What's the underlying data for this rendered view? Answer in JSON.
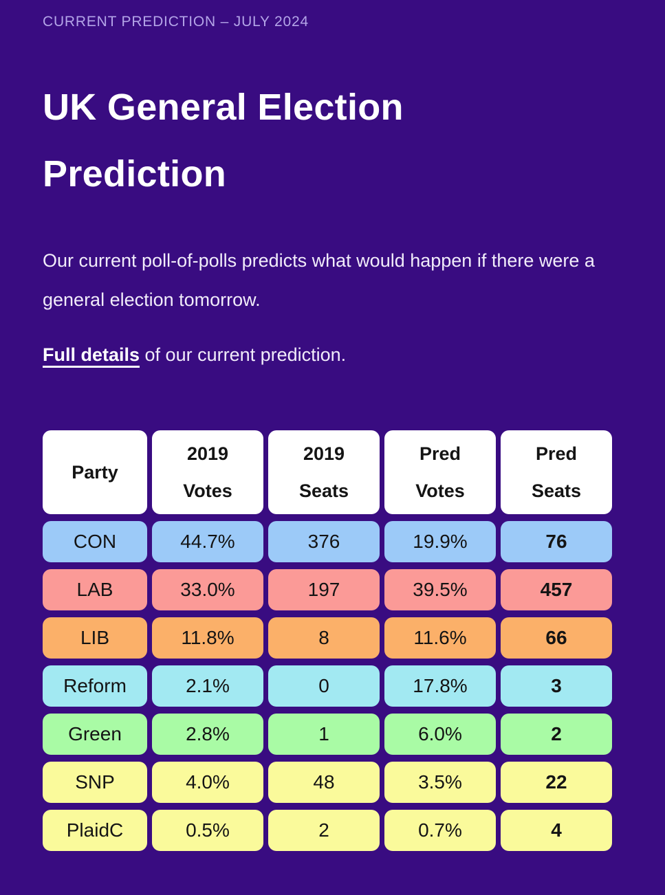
{
  "page": {
    "eyebrow": "CURRENT PREDICTION – JULY 2024",
    "title": "UK General Election Prediction",
    "intro": "Our current poll-of-polls predicts what would happen if there were a general election tomorrow.",
    "link_label": "Full details",
    "link_suffix": " of our current prediction."
  },
  "colors": {
    "background": "#390C81",
    "eyebrow_text": "#B4A5E8",
    "title_text": "#FFFFFF",
    "body_text": "#F1ECFA",
    "header_cell_bg": "#FFFFFF",
    "cell_text": "#141414"
  },
  "table": {
    "field_names": [
      "party",
      "votes-2019",
      "seats-2019",
      "pred-votes",
      "pred-seats"
    ],
    "headers": [
      {
        "lines": [
          "Party"
        ]
      },
      {
        "lines": [
          "2019",
          "Votes"
        ]
      },
      {
        "lines": [
          "2019",
          "Seats"
        ]
      },
      {
        "lines": [
          "Pred",
          "Votes"
        ]
      },
      {
        "lines": [
          "Pred",
          "Seats"
        ]
      }
    ],
    "rows": [
      {
        "party": "CON",
        "color": "#9CCAF8",
        "values": [
          "CON",
          "44.7%",
          "376",
          "19.9%",
          "76"
        ]
      },
      {
        "party": "LAB",
        "color": "#FB9A97",
        "values": [
          "LAB",
          "33.0%",
          "197",
          "39.5%",
          "457"
        ]
      },
      {
        "party": "LIB",
        "color": "#FBB069",
        "values": [
          "LIB",
          "11.8%",
          "8",
          "11.6%",
          "66"
        ]
      },
      {
        "party": "Reform",
        "color": "#A2E9F2",
        "values": [
          "Reform",
          "2.1%",
          "0",
          "17.8%",
          "3"
        ]
      },
      {
        "party": "Green",
        "color": "#A9FBA5",
        "values": [
          "Green",
          "2.8%",
          "1",
          "6.0%",
          "2"
        ]
      },
      {
        "party": "SNP",
        "color": "#FAFA9B",
        "values": [
          "SNP",
          "4.0%",
          "48",
          "3.5%",
          "22"
        ]
      },
      {
        "party": "PlaidC",
        "color": "#FAFA9B",
        "values": [
          "PlaidC",
          "0.5%",
          "2",
          "0.7%",
          "4"
        ]
      }
    ],
    "bold_column_index": 4
  }
}
